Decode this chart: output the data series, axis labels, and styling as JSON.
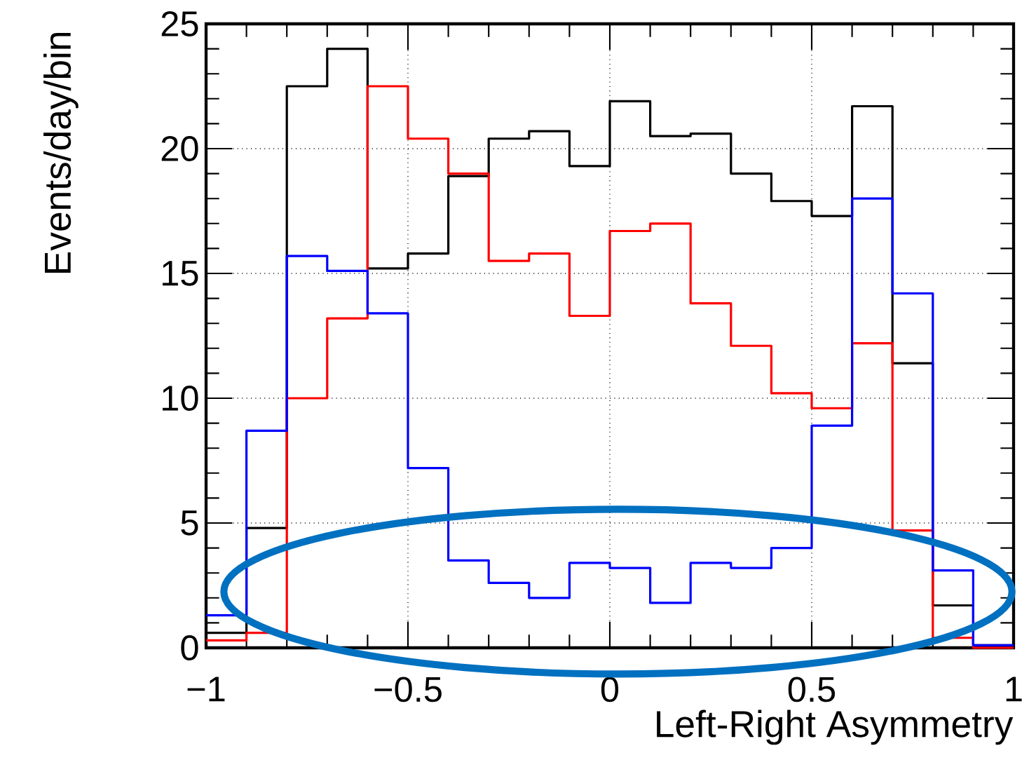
{
  "chart_data": {
    "type": "histogram",
    "xlabel": "Left-Right Asymmetry",
    "ylabel": "Events/day/bin",
    "bins": [
      -1,
      -0.9,
      -0.8,
      -0.7,
      -0.6,
      -0.5,
      -0.4,
      -0.3,
      -0.2,
      -0.1,
      0,
      0.1,
      0.2,
      0.3,
      0.4,
      0.5,
      0.6,
      0.7,
      0.8,
      0.9,
      1
    ],
    "series": [
      {
        "color": "#000000",
        "values": [
          0.6,
          4.8,
          22.5,
          24.0,
          15.2,
          15.8,
          18.9,
          20.4,
          20.7,
          19.3,
          21.9,
          20.5,
          20.6,
          19.0,
          17.9,
          17.3,
          21.7,
          11.4,
          1.7,
          0.1
        ]
      },
      {
        "color": "#ff0000",
        "values": [
          0.3,
          0.6,
          10.0,
          13.2,
          22.5,
          20.4,
          19.0,
          15.5,
          15.8,
          13.3,
          16.7,
          17.0,
          13.8,
          12.1,
          10.2,
          9.6,
          12.2,
          4.7,
          0.4,
          0
        ]
      },
      {
        "color": "#0000ff",
        "values": [
          1.3,
          8.7,
          15.7,
          15.1,
          13.4,
          7.2,
          3.5,
          2.6,
          2.0,
          3.4,
          3.2,
          1.8,
          3.4,
          3.2,
          4.0,
          8.9,
          18.0,
          14.2,
          3.1,
          0.1
        ]
      }
    ],
    "xlim": [
      -1,
      1
    ],
    "ylim": [
      0,
      25
    ],
    "xticks": [
      {
        "value": -1,
        "label": "−1"
      },
      {
        "value": -0.5,
        "label": "−0.5"
      },
      0,
      0.5,
      1
    ],
    "yticks": [
      0,
      5,
      10,
      15,
      20,
      25
    ],
    "grid": true
  }
}
